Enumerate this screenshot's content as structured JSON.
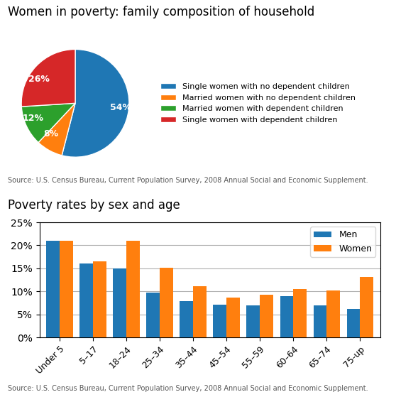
{
  "chart_data": [
    {
      "type": "pie",
      "title": "Women in poverty: family composition of household",
      "categories": [
        "Single women with no dependent children",
        "Married women with no dependent children",
        "Married women with dependent children",
        "Single women with dependent children"
      ],
      "values": [
        54,
        8,
        12,
        26
      ],
      "value_labels": [
        "54%",
        "8%",
        "12%",
        "26%"
      ],
      "data_labels": true,
      "legend": "center left",
      "annotations": [
        "Source: U.S. Census Bureau, Current Population Survey, 2008 Annual Social and Economic Supplement."
      ]
    },
    {
      "type": "bar",
      "title": "Poverty rates by sex and age",
      "categories": [
        "Under 5",
        "5–17",
        "18–24",
        "25–34",
        "35–44",
        "45–54",
        "55–59",
        "60–64",
        "65–74",
        "75-up"
      ],
      "series": [
        {
          "name": "Men",
          "values": [
            21.0,
            16.0,
            15.0,
            9.8,
            7.9,
            7.1,
            7.0,
            9.0,
            6.9,
            6.2
          ]
        },
        {
          "name": "Women",
          "values": [
            21.0,
            16.5,
            21.0,
            15.1,
            11.1,
            8.6,
            9.2,
            10.5,
            10.2,
            13.2
          ]
        }
      ],
      "ylim": [
        0,
        25
      ],
      "yticks": [
        {
          "value": 0,
          "label": "0%"
        },
        {
          "value": 5,
          "label": "5%"
        },
        {
          "value": 10,
          "label": "10%"
        },
        {
          "value": 15,
          "label": "15%"
        },
        {
          "value": 20,
          "label": "20%"
        },
        {
          "value": 25,
          "label": "25%"
        }
      ],
      "grid": true,
      "legend": "upper right",
      "annotations": [
        "Source: U.S. Census Bureau, Current Population Survey, 2008 Annual Social and Economic Supplement."
      ]
    }
  ]
}
